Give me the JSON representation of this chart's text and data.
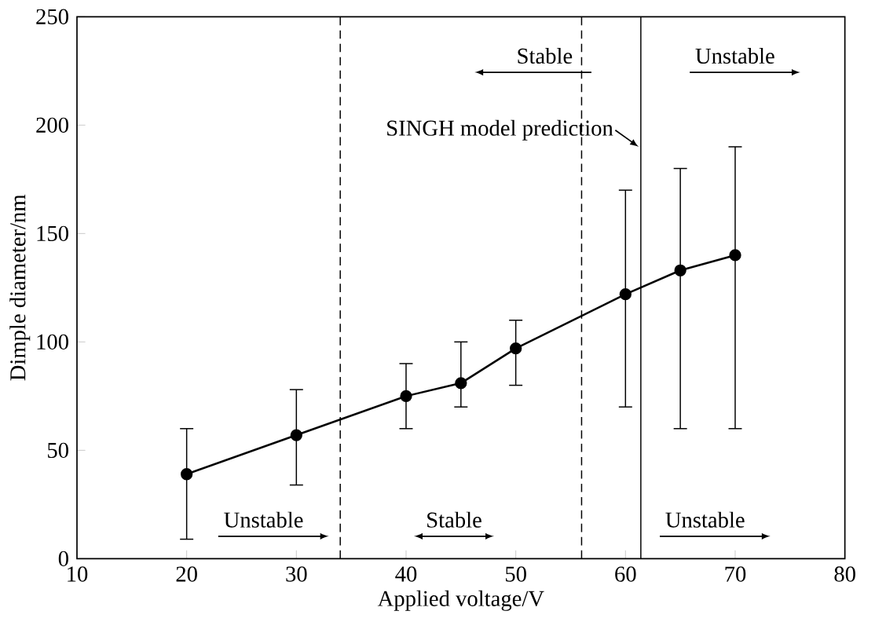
{
  "chart_data": {
    "type": "line",
    "xlabel": "Applied voltage/V",
    "ylabel": "Dimple diameter/nm",
    "x": [
      20,
      30,
      40,
      45,
      50,
      60,
      65,
      70
    ],
    "series": [
      {
        "color": "#000000",
        "values": [
          39,
          57,
          75,
          81,
          97,
          122,
          133,
          140
        ],
        "errors": [
          [
            9,
            60
          ],
          [
            34,
            78
          ],
          [
            60,
            90
          ],
          [
            70,
            100
          ],
          [
            80,
            110
          ],
          [
            70,
            170
          ],
          [
            60,
            180
          ],
          [
            60,
            190
          ]
        ]
      }
    ],
    "xlim": [
      10,
      80
    ],
    "xticks": [
      10,
      20,
      30,
      40,
      50,
      60,
      70,
      80
    ],
    "ylim": [
      0,
      250
    ],
    "yticks": [
      0,
      50,
      100,
      150,
      200,
      250
    ],
    "marker": "circle",
    "line_style": "solid",
    "ref_lines": [
      {
        "axis": "x",
        "value": 34,
        "line_style": "dashed"
      },
      {
        "axis": "x",
        "value": 56,
        "line_style": "dashed"
      },
      {
        "axis": "x",
        "value": 61.4,
        "line_style": "solid"
      }
    ],
    "annotations": [
      {
        "text": "SINGH model prediction",
        "x": 61.2,
        "y": 190
      },
      "Stable",
      "Unstable",
      "Unstable",
      "Stable",
      "Unstable"
    ]
  }
}
